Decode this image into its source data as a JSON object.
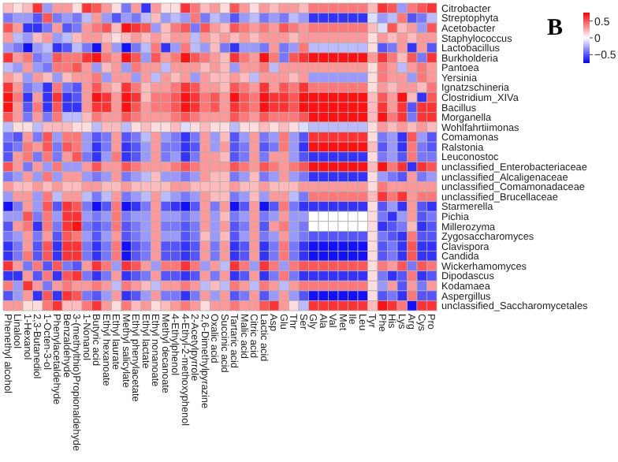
{
  "chart_data": {
    "type": "heatmap",
    "title": "B",
    "categories": [
      "Phenethyl alcohol",
      "Linalool",
      "1-Hexanol",
      "2,3-Butanediol",
      "1-Octen-3-ol",
      "Phenylacetaldehyde",
      "Benzaldehyde",
      "3-(methylthio)Propionaldehyde",
      "1-Nonanol",
      "Butyric acid",
      "Ethyl hexanoate",
      "Ethyl laurate",
      "Methyl salicylate",
      "Ethyl phenylacetate",
      "Ethyl lactate",
      "Ethyl nonanoate",
      "Methyl decanoate",
      "4-Ethylphenol",
      "4-Ethyl-2-methoxyphenol",
      "2-Acetylpyrrole",
      "2,6-Dimethylpyrazine",
      "Oxalic acid",
      "Succinic acid",
      "Tartaric acid",
      "Malic acid",
      "Citric acid",
      "Lactic acid",
      "Asp",
      "Glu",
      "Thr",
      "Ser",
      "Gly",
      "Ala",
      "Val",
      "Met",
      "Ile",
      "Leu",
      "Tyr",
      "Phe",
      "His",
      "Lys",
      "Arg",
      "Cys",
      "Pro"
    ],
    "y_categories": [
      "Citrobacter",
      "Streptophyta",
      "Acetobacter",
      "Staphylococcus",
      "Lactobacillus",
      "Burkholderia",
      "Pantoea",
      "Yersinia",
      "Ignatzschineria",
      "Clostridium_XIVa",
      "Bacillus",
      "Morganella",
      "Wohlfahrtiimonas",
      "Comamonas",
      "Ralstonia",
      "Leuconostoc",
      "unclassified_Enterobacteriaceae",
      "unclassified_Alcaligenaceae",
      "unclassified_Comamonadaceae",
      "unclassified_Brucellaceae",
      "Starmerella",
      "Pichia",
      "Millerozyma",
      "Zygosaccharomyces",
      "Clavispora",
      "Candida",
      "Wickerhamomyces",
      "Dipodascus",
      "Kodamaea",
      "Aspergillus",
      "unclassified_Saccharomycetales"
    ],
    "cells": [
      [
        0.2,
        0.1,
        0.2,
        0.6,
        -0.3,
        0.3,
        0.3,
        0.1,
        0.6,
        0.5,
        0.3,
        0.1,
        -0.4,
        0.3,
        -0.6,
        0.3,
        0.1,
        0.1,
        0.6,
        0.4,
        0.2,
        0.3,
        0.1,
        0.5,
        0.3,
        0.1,
        0.3,
        0.2,
        0.3,
        0.3,
        0.2,
        0.4,
        0.4,
        0.4,
        0.4,
        0.4,
        0.4,
        0.2,
        0.6,
        0.5,
        -0.3,
        0.4,
        0.5,
        0.6
      ],
      [
        -0.4,
        -0.3,
        -0.3,
        -0.5,
        0.5,
        -0.4,
        -0.3,
        -0.4,
        -0.2,
        0.3,
        -0.3,
        -0.5,
        -0.3,
        -0.4,
        -0.2,
        0.2,
        -0.3,
        -0.2,
        -0.3,
        0.4,
        -0.4,
        -0.2,
        -0.3,
        -0.5,
        -0.3,
        -0.2,
        -0.4,
        -0.3,
        -0.4,
        -0.2,
        -0.3,
        -0.6,
        -0.6,
        -0.6,
        -0.6,
        -0.6,
        -0.6,
        -0.1,
        -0.3,
        -0.2,
        0.4,
        -0.5,
        -0.4,
        -0.2
      ],
      [
        0.5,
        0.3,
        -0.6,
        -0.6,
        -0.4,
        0.3,
        -0.5,
        -0.4,
        0.3,
        0.4,
        0.5,
        0.2,
        0.7,
        0.6,
        0.5,
        -0.3,
        0.2,
        0.4,
        0.5,
        -0.4,
        0.5,
        0.3,
        0.2,
        0.5,
        0.4,
        0.3,
        0.4,
        0.3,
        0.5,
        0.4,
        0.3,
        0.4,
        0.4,
        0.4,
        0.4,
        0.4,
        0.4,
        0.2,
        -0.1,
        0.5,
        0.2,
        0.3,
        -0.3,
        0.5
      ],
      [
        0.3,
        -0.2,
        -0.3,
        0.2,
        0.3,
        -0.3,
        -0.2,
        0.2,
        0.3,
        0.3,
        0.2,
        0.1,
        0.2,
        0.3,
        0.2,
        0.3,
        0.2,
        0.3,
        0.3,
        -0.2,
        0.3,
        0.2,
        0.3,
        0.2,
        0.3,
        0.2,
        0.3,
        0.3,
        0.3,
        0.2,
        0.3,
        0.3,
        0.3,
        0.3,
        0.3,
        0.3,
        0.3,
        0.1,
        0.3,
        0.2,
        0.3,
        0.2,
        0.3,
        0.3
      ],
      [
        -0.3,
        -0.4,
        -0.7,
        -0.3,
        -0.2,
        -0.6,
        -0.5,
        -0.2,
        -0.4,
        -0.7,
        0.3,
        -0.3,
        -0.7,
        -0.4,
        -0.2,
        0.4,
        -0.6,
        -0.3,
        0.4,
        -0.2,
        -0.3,
        0.2,
        -0.4,
        -0.6,
        -0.3,
        -0.3,
        -0.4,
        0.3,
        -0.4,
        -0.3,
        0.4,
        -0.2,
        -0.2,
        -0.2,
        -0.2,
        -0.2,
        -0.2,
        0.1,
        -0.5,
        -0.4,
        0.3,
        -0.6,
        0.3,
        -0.5
      ],
      [
        0.6,
        0.3,
        0.4,
        -0.4,
        -0.3,
        0.5,
        0.4,
        0.4,
        0.6,
        0.7,
        0.4,
        0.3,
        0.7,
        0.5,
        -0.3,
        0.5,
        0.3,
        0.4,
        0.7,
        0.5,
        0.4,
        0.3,
        0.2,
        0.6,
        0.4,
        0.3,
        0.7,
        0.4,
        -0.4,
        0.5,
        0.6,
        0.7,
        0.7,
        0.7,
        0.7,
        0.7,
        0.7,
        0.3,
        0.6,
        0.4,
        0.2,
        0.5,
        -0.4,
        0.6
      ],
      [
        -0.2,
        -0.3,
        0.3,
        -0.3,
        -0.4,
        0.4,
        0.4,
        0.5,
        0.3,
        -0.3,
        0.2,
        0.3,
        -0.3,
        0.4,
        0.3,
        0.3,
        -0.2,
        0.3,
        0.3,
        0.3,
        0.2,
        0.3,
        0.2,
        -0.3,
        0.3,
        0.3,
        0.4,
        -0.2,
        0.3,
        0.3,
        0.3,
        0.3,
        0.3,
        0.3,
        0.3,
        0.3,
        0.3,
        0.1,
        0.4,
        0.3,
        -0.2,
        0.3,
        0.4,
        0.3
      ],
      [
        0.3,
        0.2,
        -0.3,
        0.3,
        0.2,
        -0.3,
        0.2,
        0.3,
        0.3,
        0.4,
        -0.3,
        0.3,
        0.3,
        -0.3,
        0.3,
        -0.2,
        0.3,
        0.2,
        0.3,
        -0.3,
        0.3,
        0.2,
        0.2,
        0.3,
        0.2,
        -0.2,
        0.3,
        0.3,
        0.3,
        0.2,
        0.3,
        -0.3,
        -0.3,
        -0.3,
        -0.3,
        -0.3,
        -0.3,
        0.1,
        0.4,
        0.3,
        0.3,
        -0.3,
        0.4,
        0.3
      ],
      [
        0.6,
        0.3,
        -0.4,
        -0.3,
        -0.6,
        0.4,
        -0.4,
        -0.5,
        0.3,
        0.5,
        0.3,
        0.2,
        0.6,
        0.4,
        0.2,
        0.3,
        0.3,
        0.4,
        0.6,
        0.5,
        0.3,
        0.3,
        0.2,
        0.5,
        0.4,
        0.3,
        0.6,
        0.3,
        0.5,
        0.4,
        0.6,
        0.4,
        0.4,
        0.4,
        0.4,
        0.4,
        0.4,
        0.1,
        0.3,
        0.2,
        0.3,
        0.3,
        0.2,
        0.4
      ],
      [
        0.7,
        0.4,
        -0.6,
        0.3,
        -0.6,
        0.6,
        -0.6,
        -0.5,
        0.3,
        0.7,
        0.6,
        0.3,
        0.7,
        0.6,
        0.2,
        0.4,
        0.4,
        0.5,
        0.7,
        0.6,
        0.4,
        0.5,
        0.3,
        0.7,
        0.5,
        0.4,
        0.7,
        0.6,
        0.6,
        0.5,
        0.7,
        0.7,
        0.7,
        0.7,
        0.7,
        0.7,
        0.7,
        0.2,
        0.5,
        0.3,
        0.7,
        0.2,
        -0.6,
        0.5
      ],
      [
        0.7,
        0.3,
        -0.5,
        0.4,
        -0.6,
        0.5,
        -0.6,
        -0.6,
        0.3,
        0.6,
        0.6,
        0.3,
        0.7,
        0.5,
        0.3,
        0.4,
        0.4,
        0.5,
        0.7,
        0.6,
        0.4,
        0.5,
        0.3,
        0.6,
        0.5,
        0.4,
        0.7,
        0.6,
        0.6,
        0.5,
        0.7,
        0.7,
        0.7,
        0.7,
        0.7,
        0.7,
        0.7,
        0.2,
        0.6,
        0.3,
        0.6,
        -0.5,
        0.6,
        0.6
      ],
      [
        0.5,
        0.3,
        -0.4,
        0.3,
        -0.4,
        0.4,
        -0.2,
        -0.2,
        0.2,
        0.4,
        0.3,
        0.3,
        0.5,
        0.4,
        0.3,
        0.3,
        0.3,
        0.4,
        0.5,
        0.4,
        0.3,
        0.3,
        0.3,
        0.5,
        0.4,
        0.3,
        0.5,
        0.4,
        0.4,
        0.4,
        0.5,
        0.7,
        0.7,
        0.7,
        0.7,
        0.7,
        0.7,
        0.2,
        0.7,
        0.4,
        0.6,
        -0.4,
        0.6,
        0.6
      ],
      [
        -0.2,
        0.1,
        0.1,
        -0.2,
        0.2,
        0.2,
        0.2,
        0.1,
        0.1,
        -0.2,
        0.2,
        0.2,
        -0.2,
        0.1,
        0.2,
        0.1,
        0.1,
        0.2,
        -0.1,
        0.1,
        0.2,
        0.1,
        0.1,
        -0.2,
        0.1,
        0.1,
        0.2,
        0.1,
        0.2,
        0.1,
        -0.1,
        -0.2,
        -0.2,
        -0.2,
        -0.2,
        -0.2,
        -0.2,
        0.1,
        0.3,
        0.2,
        0.3,
        0.2,
        0.3,
        0.2
      ],
      [
        -0.4,
        -0.5,
        0.3,
        -0.4,
        0.5,
        -0.3,
        0.4,
        0.4,
        -0.3,
        -0.5,
        -0.4,
        0.3,
        -0.5,
        -0.4,
        -0.2,
        0.3,
        -0.3,
        -0.4,
        -0.6,
        -0.4,
        0.3,
        -0.3,
        0.2,
        -0.5,
        -0.3,
        0.3,
        -0.4,
        -0.3,
        0.4,
        -0.3,
        -0.5,
        0.6,
        0.6,
        0.6,
        0.6,
        0.6,
        0.6,
        0.1,
        -0.4,
        -0.3,
        -0.6,
        0.5,
        -0.3,
        -0.5
      ],
      [
        -0.5,
        -0.4,
        0.4,
        0.3,
        0.5,
        -0.4,
        0.5,
        0.4,
        -0.3,
        -0.6,
        -0.4,
        0.3,
        -0.6,
        -0.5,
        -0.3,
        0.3,
        -0.4,
        -0.4,
        -0.6,
        -0.5,
        0.3,
        -0.3,
        0.3,
        -0.5,
        -0.4,
        0.3,
        -0.5,
        -0.4,
        0.4,
        -0.3,
        -0.6,
        0.7,
        0.7,
        0.7,
        0.7,
        0.7,
        0.7,
        0.2,
        -0.5,
        -0.3,
        -0.6,
        0.4,
        -0.4,
        -0.5
      ],
      [
        -0.5,
        0.3,
        0.4,
        -0.4,
        0.4,
        -0.4,
        0.3,
        0.5,
        -0.4,
        -0.6,
        -0.3,
        0.4,
        -0.6,
        -0.5,
        -0.3,
        0.3,
        -0.4,
        -0.3,
        -0.6,
        -0.4,
        0.3,
        0.3,
        0.2,
        -0.5,
        -0.4,
        0.3,
        -0.4,
        0.3,
        0.3,
        -0.3,
        -0.5,
        -0.6,
        -0.6,
        -0.6,
        -0.6,
        -0.6,
        -0.6,
        0.1,
        -0.4,
        -0.3,
        -0.5,
        0.4,
        -0.4,
        -0.4
      ],
      [
        0.5,
        0.3,
        -0.4,
        0.3,
        -0.3,
        0.4,
        -0.3,
        -0.3,
        0.3,
        0.5,
        0.3,
        0.3,
        0.5,
        0.4,
        0.3,
        0.3,
        0.3,
        0.4,
        0.5,
        0.4,
        0.3,
        0.3,
        0.3,
        0.5,
        0.4,
        0.3,
        0.5,
        0.4,
        0.3,
        0.4,
        0.5,
        0.7,
        0.7,
        0.7,
        0.7,
        0.7,
        0.7,
        0.2,
        0.7,
        0.4,
        0.6,
        -0.6,
        0.6,
        0.5
      ],
      [
        -0.4,
        -0.3,
        0.3,
        -0.3,
        0.4,
        -0.3,
        0.3,
        0.3,
        -0.3,
        -0.4,
        -0.3,
        0.3,
        -0.4,
        -0.3,
        -0.2,
        0.2,
        -0.3,
        -0.3,
        -0.4,
        -0.3,
        0.3,
        0.2,
        0.2,
        -0.4,
        -0.3,
        0.2,
        -0.4,
        -0.3,
        0.3,
        -0.3,
        -0.4,
        -0.6,
        -0.6,
        -0.6,
        -0.6,
        -0.6,
        -0.6,
        0.1,
        -0.3,
        -0.4,
        -0.5,
        0.3,
        -0.4,
        -0.3
      ],
      [
        0.3,
        0.2,
        0.2,
        0.3,
        0.2,
        0.3,
        0.2,
        0.2,
        0.3,
        0.3,
        0.2,
        0.2,
        0.3,
        0.2,
        0.2,
        0.2,
        0.2,
        0.3,
        0.3,
        0.2,
        0.2,
        0.2,
        0.2,
        0.3,
        0.2,
        0.2,
        0.3,
        0.2,
        0.2,
        0.2,
        0.3,
        0.3,
        0.3,
        0.3,
        0.3,
        0.3,
        0.3,
        0.1,
        0.4,
        0.3,
        0.3,
        0.3,
        0.3,
        0.3
      ],
      [
        -0.3,
        0.3,
        0.3,
        -0.3,
        0.4,
        -0.2,
        0.3,
        0.3,
        -0.2,
        -0.4,
        -0.2,
        0.3,
        -0.4,
        -0.3,
        -0.2,
        0.3,
        -0.2,
        -0.3,
        -0.4,
        -0.3,
        0.3,
        0.2,
        0.2,
        -0.4,
        -0.3,
        0.2,
        -0.3,
        0.3,
        0.3,
        -0.2,
        -0.4,
        0.4,
        0.4,
        0.4,
        0.4,
        0.4,
        0.4,
        0.2,
        0.6,
        0.4,
        0.6,
        0.3,
        0.4,
        0.4
      ],
      [
        -0.7,
        -0.4,
        0.3,
        -0.3,
        0.5,
        -0.5,
        0.6,
        0.5,
        -0.4,
        -0.7,
        -0.5,
        0.4,
        -0.7,
        -0.6,
        -0.4,
        0.3,
        -0.5,
        -0.6,
        -0.7,
        -0.5,
        0.3,
        -0.4,
        0.3,
        -0.7,
        -0.5,
        0.3,
        -0.7,
        -0.5,
        0.4,
        -0.4,
        -0.6,
        -0.6,
        -0.6,
        -0.6,
        -0.6,
        -0.6,
        -0.6,
        0.1,
        -0.5,
        -0.3,
        -0.6,
        0.3,
        -0.5,
        -0.6
      ],
      [
        -0.3,
        -0.3,
        0.5,
        -0.4,
        0.4,
        -0.3,
        0.6,
        0.6,
        -0.3,
        -0.4,
        -0.3,
        0.4,
        -0.4,
        -0.3,
        -0.3,
        0.3,
        -0.3,
        -0.3,
        -0.4,
        -0.3,
        0.3,
        -0.3,
        0.2,
        -0.4,
        -0.3,
        0.3,
        -0.4,
        -0.3,
        0.3,
        -0.3,
        -0.3,
        0.0,
        0.0,
        0.0,
        0.0,
        0.0,
        0.0,
        0.1,
        -0.4,
        -0.6,
        -0.3,
        0.3,
        -0.5,
        -0.4
      ],
      [
        -0.5,
        0.3,
        0.4,
        -0.6,
        0.4,
        -0.4,
        0.6,
        0.7,
        -0.4,
        -0.5,
        -0.4,
        0.4,
        -0.5,
        -0.4,
        -0.3,
        0.3,
        -0.4,
        -0.4,
        -0.5,
        -0.4,
        0.3,
        -0.3,
        0.3,
        -0.5,
        -0.4,
        0.3,
        -0.5,
        0.3,
        0.4,
        -0.3,
        -0.4,
        0.0,
        0.0,
        0.0,
        0.0,
        0.0,
        0.0,
        0.1,
        -0.6,
        -0.5,
        -0.4,
        0.2,
        -0.6,
        -0.5
      ],
      [
        -0.4,
        -0.3,
        0.3,
        -0.4,
        0.3,
        -0.5,
        0.5,
        0.4,
        -0.3,
        -0.5,
        -0.3,
        0.3,
        -0.5,
        -0.4,
        -0.3,
        0.3,
        -0.3,
        -0.3,
        -0.5,
        -0.4,
        0.2,
        -0.3,
        0.2,
        -0.5,
        -0.3,
        0.3,
        -0.4,
        -0.3,
        0.3,
        -0.3,
        -0.4,
        -0.5,
        -0.5,
        -0.5,
        -0.5,
        -0.5,
        -0.5,
        0.1,
        -0.4,
        -0.5,
        -0.6,
        0.4,
        -0.5,
        -0.5
      ],
      [
        -0.6,
        -0.4,
        0.3,
        -0.5,
        0.5,
        -0.6,
        0.6,
        0.6,
        -0.4,
        -0.6,
        -0.4,
        0.4,
        -0.7,
        -0.5,
        -0.4,
        0.3,
        -0.5,
        -0.5,
        -0.6,
        -0.5,
        0.3,
        -0.4,
        0.3,
        -0.6,
        -0.5,
        0.3,
        -0.6,
        -0.4,
        0.4,
        -0.4,
        -0.6,
        -0.7,
        -0.7,
        -0.7,
        -0.7,
        -0.7,
        -0.7,
        0.1,
        -0.5,
        -0.4,
        -0.6,
        0.5,
        -0.6,
        -0.6
      ],
      [
        -0.6,
        -0.4,
        0.4,
        -0.5,
        0.5,
        -0.6,
        0.6,
        0.6,
        -0.4,
        -0.6,
        -0.4,
        0.4,
        -0.7,
        -0.5,
        -0.4,
        0.3,
        -0.5,
        -0.5,
        -0.6,
        -0.5,
        0.3,
        -0.4,
        0.3,
        -0.6,
        -0.5,
        0.3,
        -0.6,
        -0.4,
        0.4,
        -0.4,
        -0.6,
        -0.7,
        -0.7,
        -0.7,
        -0.7,
        -0.7,
        -0.7,
        0.1,
        -0.5,
        -0.4,
        -0.6,
        0.5,
        -0.6,
        -0.6
      ],
      [
        0.6,
        0.3,
        -0.4,
        0.4,
        -0.5,
        0.5,
        -0.4,
        -0.5,
        0.3,
        0.6,
        0.4,
        -0.3,
        0.6,
        0.5,
        0.3,
        -0.3,
        0.4,
        0.4,
        0.6,
        0.4,
        -0.3,
        0.3,
        -0.2,
        0.6,
        0.4,
        -0.3,
        0.6,
        0.4,
        -0.3,
        0.4,
        0.5,
        0.5,
        0.5,
        0.5,
        0.5,
        0.5,
        0.5,
        0.1,
        0.4,
        0.3,
        0.5,
        -0.4,
        0.5,
        0.4
      ],
      [
        -0.6,
        -0.6,
        0.3,
        -0.5,
        0.4,
        -0.6,
        0.5,
        0.6,
        -0.4,
        -0.6,
        -0.4,
        0.3,
        -0.6,
        -0.5,
        -0.4,
        0.3,
        -0.5,
        -0.5,
        -0.6,
        -0.5,
        0.3,
        -0.4,
        0.3,
        -0.6,
        -0.5,
        0.3,
        -0.6,
        -0.4,
        0.4,
        -0.4,
        -0.6,
        -0.6,
        -0.6,
        -0.6,
        -0.6,
        -0.6,
        -0.6,
        0.1,
        -0.4,
        -0.6,
        -0.5,
        0.4,
        -0.6,
        -0.5
      ],
      [
        0.4,
        -0.3,
        0.6,
        0.3,
        -0.4,
        0.3,
        0.4,
        0.3,
        0.3,
        0.4,
        0.3,
        -0.2,
        0.4,
        0.3,
        0.2,
        -0.2,
        0.3,
        0.3,
        0.4,
        0.3,
        -0.2,
        0.2,
        -0.2,
        0.4,
        0.3,
        -0.2,
        0.4,
        0.3,
        -0.2,
        0.3,
        0.4,
        0.4,
        0.4,
        0.4,
        0.4,
        0.4,
        0.4,
        0.1,
        -0.3,
        0.3,
        -0.5,
        0.3,
        -0.4,
        0.3
      ],
      [
        -0.5,
        -0.3,
        0.3,
        -0.6,
        0.5,
        -0.6,
        0.6,
        0.5,
        -0.4,
        -0.5,
        -0.3,
        0.3,
        -0.6,
        -0.5,
        -0.3,
        0.3,
        -0.4,
        -0.4,
        -0.6,
        -0.4,
        0.3,
        -0.3,
        0.3,
        -0.5,
        -0.4,
        0.3,
        -0.5,
        -0.3,
        0.3,
        -0.3,
        -0.5,
        -0.7,
        -0.7,
        -0.7,
        -0.7,
        -0.7,
        -0.7,
        0.1,
        -0.5,
        -0.4,
        -0.6,
        0.4,
        -0.5,
        -0.5
      ],
      [
        0.3,
        0.3,
        0.1,
        0.1,
        0.4,
        0.6,
        0.2,
        0.2,
        0.4,
        0.6,
        0.3,
        0.1,
        0.4,
        0.2,
        0.3,
        0.1,
        0.2,
        0.3,
        0.4,
        0.3,
        0.1,
        0.3,
        0.3,
        0.4,
        0.3,
        0.3,
        0.5,
        0.6,
        0.3,
        0.1,
        -0.2,
        0.6,
        0.6,
        0.6,
        0.6,
        0.6,
        0.6,
        0.2,
        0.7,
        0.6,
        0.4,
        -0.7,
        0.6,
        0.6
      ]
    ],
    "clim": [
      -0.75,
      0.75
    ],
    "cticks": [
      0.5,
      0,
      -0.5
    ]
  }
}
